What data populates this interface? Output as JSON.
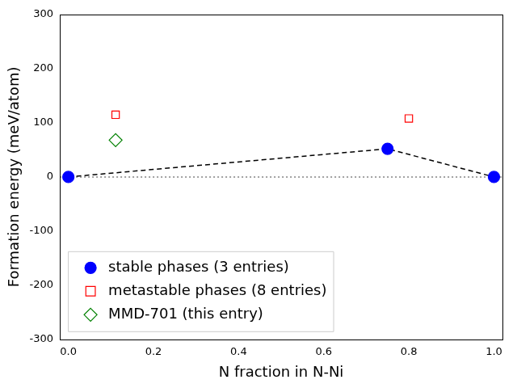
{
  "chart_data": {
    "type": "scatter",
    "x_label": "N fraction in N-Ni",
    "y_label": "Formation energy (meV/atom)",
    "xlim": [
      -0.02,
      1.02
    ],
    "ylim": [
      -300,
      300
    ],
    "xticks": [
      {
        "value": 0,
        "label": "0.0"
      },
      {
        "value": 0.2,
        "label": "0.2"
      },
      {
        "value": 0.4,
        "label": "0.4"
      },
      {
        "value": 0.6,
        "label": "0.6"
      },
      {
        "value": 0.8,
        "label": "0.8"
      },
      {
        "value": 1,
        "label": "1.0"
      }
    ],
    "yticks": [
      -300,
      -200,
      -100,
      0,
      100,
      200,
      300
    ],
    "grid": false,
    "legend": "lower left",
    "series": [
      {
        "name": "stable phases (3 entries)",
        "color": "#0000ff",
        "marker": "circle",
        "line_style": "dashed",
        "x": [
          0,
          0.75,
          1
        ],
        "values": [
          0,
          52,
          0
        ]
      },
      {
        "name": "metastable phases (8 entries)",
        "color": "#ff0000",
        "marker": "open_square",
        "x": [
          0.111,
          0.8
        ],
        "values": [
          115,
          108
        ]
      },
      {
        "name": "MMD-701 (this entry)",
        "color": "#008000",
        "marker": "open_diamond",
        "x": [
          0.111
        ],
        "values": [
          68
        ]
      }
    ]
  }
}
